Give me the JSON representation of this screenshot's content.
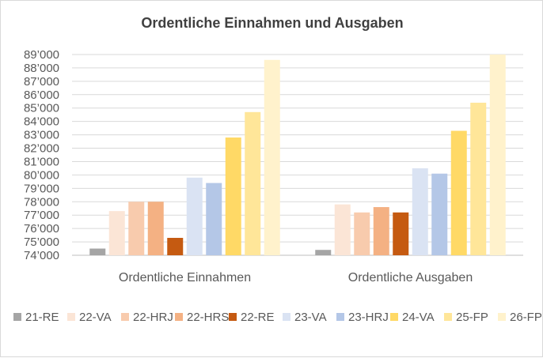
{
  "chart_data": {
    "type": "bar",
    "title": "Ordentliche Einnahmen und Ausgaben",
    "categories": [
      "Ordentliche Einnahmen",
      "Ordentliche Ausgaben"
    ],
    "ylim": [
      74000,
      89000
    ],
    "ytick_step": 1000,
    "ytick_labels": [
      "74’000",
      "75’000",
      "76’000",
      "77’000",
      "78’000",
      "79’000",
      "80’000",
      "81’000",
      "82’000",
      "83’000",
      "84’000",
      "85’000",
      "86’000",
      "87’000",
      "88’000",
      "89’000"
    ],
    "grid": true,
    "legend_position": "bottom",
    "series": [
      {
        "name": "21-RE",
        "color": "#a5a5a5",
        "values": [
          74500,
          74400
        ]
      },
      {
        "name": "22-VA",
        "color": "#fbe5d6",
        "values": [
          77300,
          77800
        ]
      },
      {
        "name": "22-HRJ",
        "color": "#f8cbad",
        "values": [
          78000,
          77200
        ]
      },
      {
        "name": "22-HRS",
        "color": "#f4b183",
        "values": [
          78000,
          77600
        ]
      },
      {
        "name": "22-RE",
        "color": "#c55a11",
        "values": [
          75300,
          77200
        ]
      },
      {
        "name": "23-VA",
        "color": "#dae3f3",
        "values": [
          79800,
          80500
        ]
      },
      {
        "name": "23-HRJ",
        "color": "#b4c7e7",
        "values": [
          79400,
          80100
        ]
      },
      {
        "name": "24-VA",
        "color": "#ffd966",
        "values": [
          82800,
          83300
        ]
      },
      {
        "name": "25-FP",
        "color": "#ffe699",
        "values": [
          84700,
          85400
        ]
      },
      {
        "name": "26-FP",
        "color": "#fff2cc",
        "values": [
          88600,
          89000
        ]
      }
    ]
  }
}
